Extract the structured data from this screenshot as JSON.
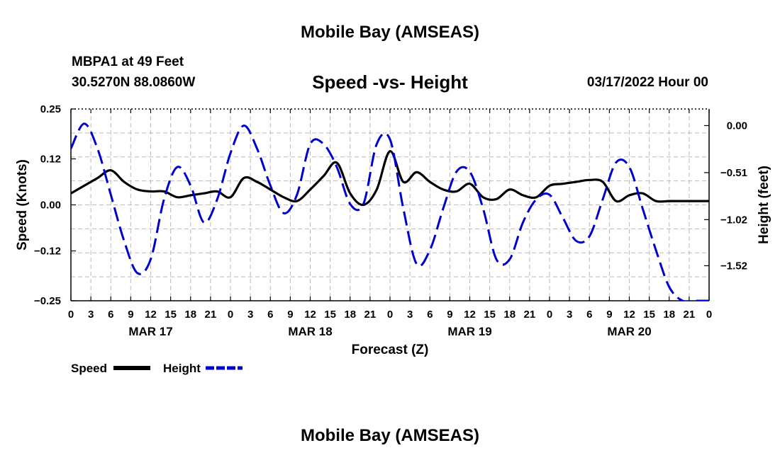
{
  "page": {
    "title": "Mobile Bay (AMSEAS)",
    "footer_title": "Mobile Bay (AMSEAS)",
    "station": "MBPA1 at 49 Feet",
    "coords": "30.5270N  88.0860W",
    "subtitle": "Speed -vs- Height",
    "datetime": "03/17/2022 Hour 00"
  },
  "chart_data": {
    "type": "line",
    "title": "Speed -vs- Height",
    "xlabel": "Forecast (Z)",
    "ylabel_left": "Speed (Knots)",
    "ylabel_right": "Height (feet)",
    "x_unit": "hours from 03/17/2022 00Z",
    "xlim": [
      0,
      96
    ],
    "ylim_left": [
      -0.25,
      0.25
    ],
    "ylim_right": [
      -1.9,
      0.18
    ],
    "x_ticks": [
      0,
      3,
      6,
      9,
      12,
      15,
      18,
      21,
      24,
      27,
      30,
      33,
      36,
      39,
      42,
      45,
      48,
      51,
      54,
      57,
      60,
      63,
      66,
      69,
      72,
      75,
      78,
      81,
      84,
      87,
      90,
      93,
      96
    ],
    "x_tick_labels": [
      "0",
      "3",
      "6",
      "9",
      "12",
      "15",
      "18",
      "21",
      "0",
      "3",
      "6",
      "9",
      "12",
      "15",
      "18",
      "21",
      "0",
      "3",
      "6",
      "9",
      "12",
      "15",
      "18",
      "21",
      "0",
      "3",
      "6",
      "9",
      "12",
      "15",
      "18",
      "21",
      "0"
    ],
    "date_labels": [
      {
        "x": 12,
        "label": "MAR 17"
      },
      {
        "x": 36,
        "label": "MAR 18"
      },
      {
        "x": 60,
        "label": "MAR 19"
      },
      {
        "x": 84,
        "label": "MAR 20"
      }
    ],
    "y_left_ticks": [
      0.25,
      0.12,
      0.0,
      -0.12,
      -0.25
    ],
    "y_left_tick_labels": [
      "0.25",
      "0.12",
      "0.00",
      "−0.12",
      "−0.25"
    ],
    "y_right_ticks": [
      0.0,
      -0.51,
      -1.02,
      -1.52
    ],
    "y_right_tick_labels": [
      "0.00",
      "−0.51",
      "−1.02",
      "−1.52"
    ],
    "grid": true,
    "legend_position": "bottom-left",
    "series": [
      {
        "name": "Speed",
        "axis": "left",
        "color": "#000000",
        "style": "solid",
        "x": [
          0,
          2,
          4,
          6,
          8,
          10,
          12,
          14,
          16,
          18,
          20,
          22,
          24,
          26,
          28,
          30,
          32,
          34,
          36,
          38,
          40,
          42,
          44,
          46,
          48,
          50,
          52,
          54,
          56,
          58,
          60,
          62,
          64,
          66,
          68,
          70,
          72,
          74,
          76,
          78,
          80,
          82,
          84,
          86,
          88,
          90,
          92,
          94,
          96
        ],
        "values": [
          0.03,
          0.05,
          0.07,
          0.09,
          0.06,
          0.04,
          0.035,
          0.035,
          0.02,
          0.025,
          0.03,
          0.035,
          0.02,
          0.07,
          0.06,
          0.04,
          0.02,
          0.01,
          0.04,
          0.075,
          0.11,
          0.03,
          0.0,
          0.04,
          0.14,
          0.06,
          0.085,
          0.06,
          0.04,
          0.035,
          0.055,
          0.02,
          0.015,
          0.04,
          0.025,
          0.02,
          0.05,
          0.055,
          0.06,
          0.065,
          0.06,
          0.01,
          0.025,
          0.03,
          0.01,
          0.01,
          0.01,
          0.01,
          0.01
        ]
      },
      {
        "name": "Height",
        "axis": "right",
        "color": "#0000cc",
        "style": "dashed",
        "x": [
          0,
          2,
          4,
          6,
          8,
          10,
          12,
          14,
          16,
          18,
          20,
          22,
          24,
          26,
          28,
          30,
          32,
          34,
          36,
          38,
          40,
          42,
          44,
          46,
          48,
          50,
          52,
          54,
          56,
          58,
          60,
          62,
          64,
          66,
          68,
          70,
          72,
          74,
          76,
          78,
          80,
          82,
          84,
          86,
          88,
          90,
          92,
          94,
          96
        ],
        "values": [
          -0.25,
          0.02,
          -0.25,
          -0.75,
          -1.25,
          -1.6,
          -1.45,
          -0.8,
          -0.45,
          -0.65,
          -1.05,
          -0.8,
          -0.3,
          0.0,
          -0.25,
          -0.65,
          -0.95,
          -0.75,
          -0.2,
          -0.2,
          -0.45,
          -0.85,
          -0.85,
          -0.2,
          -0.15,
          -0.9,
          -1.5,
          -1.35,
          -0.9,
          -0.5,
          -0.5,
          -0.9,
          -1.45,
          -1.45,
          -1.05,
          -0.8,
          -0.75,
          -1.0,
          -1.25,
          -1.2,
          -0.8,
          -0.4,
          -0.45,
          -0.9,
          -1.35,
          -1.75,
          -1.9,
          -1.9,
          -1.9
        ]
      }
    ]
  }
}
